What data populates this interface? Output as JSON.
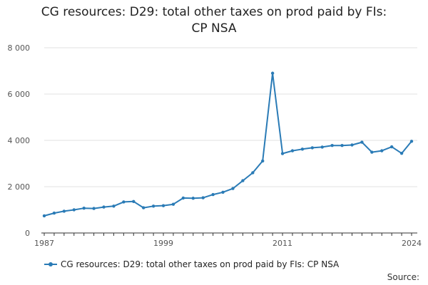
{
  "title_line1": "CG resources: D29: total other taxes on prod paid by FIs:",
  "title_line2": "CP NSA",
  "source_label": "Source:",
  "colors": {
    "series": "#2a7bb6",
    "grid": "#e0e0e0",
    "axis": "#333333"
  },
  "chart_data": {
    "type": "line",
    "title": "CG resources: D29: total other taxes on prod paid by FIs: CP NSA",
    "ylim": [
      0,
      8000
    ],
    "y_ticks": [
      0,
      2000,
      4000,
      6000,
      8000
    ],
    "y_tick_labels": [
      "0",
      "2 000",
      "4 000",
      "6 000",
      "8 000"
    ],
    "x_ticks": [
      1987,
      1999,
      2011,
      2024
    ],
    "x_tick_labels": [
      "1987",
      "1999",
      "2011",
      "2024"
    ],
    "grid": "horizontal",
    "legend": "bottom",
    "series": [
      {
        "name": "CG resources: D29: total other taxes on prod paid by FIs: CP NSA",
        "x": [
          1987,
          1988,
          1989,
          1990,
          1991,
          1992,
          1993,
          1994,
          1995,
          1996,
          1997,
          1998,
          1999,
          2000,
          2001,
          2002,
          2003,
          2004,
          2005,
          2006,
          2007,
          2008,
          2009,
          2010,
          2011,
          2012,
          2013,
          2014,
          2015,
          2016,
          2017,
          2018,
          2019,
          2020,
          2021,
          2022,
          2023,
          2024
        ],
        "values": [
          740,
          860,
          940,
          1000,
          1070,
          1060,
          1120,
          1160,
          1340,
          1360,
          1090,
          1160,
          1180,
          1240,
          1510,
          1500,
          1520,
          1660,
          1760,
          1920,
          2260,
          2600,
          3110,
          6900,
          3430,
          3550,
          3620,
          3680,
          3710,
          3780,
          3780,
          3800,
          3920,
          3490,
          3550,
          3720,
          3440,
          3960
        ]
      }
    ]
  }
}
